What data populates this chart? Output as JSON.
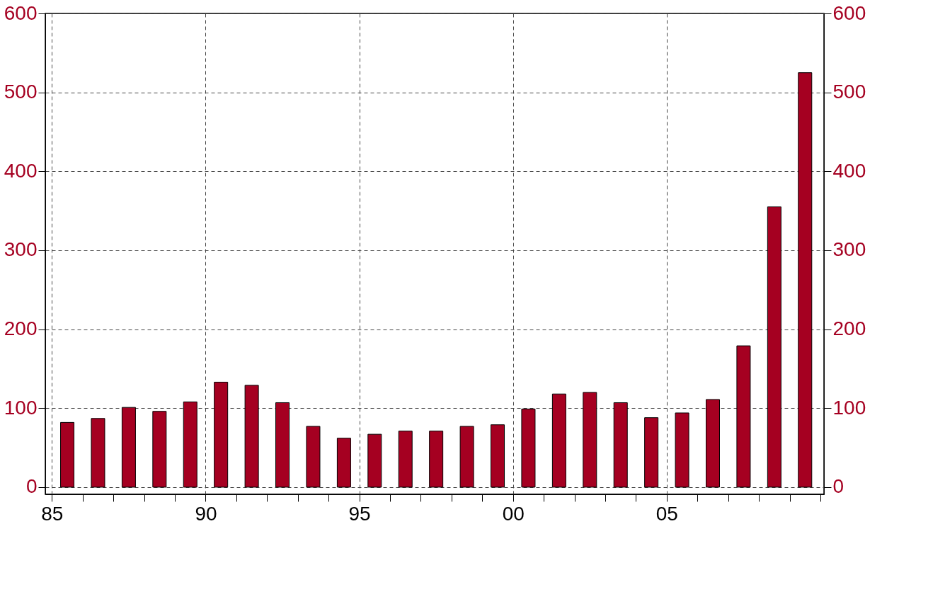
{
  "chart_data": {
    "type": "bar",
    "color": "#a50021",
    "x": [
      1985.5,
      1986.5,
      1987.5,
      1988.5,
      1989.5,
      1990.5,
      1991.5,
      1992.5,
      1993.5,
      1994.5,
      1995.5,
      1996.5,
      1997.5,
      1998.5,
      1999.5,
      2000.5,
      2001.5,
      2002.5,
      2003.5,
      2004.5,
      2005.5,
      2006.5,
      2007.5,
      2008.5,
      2009.5
    ],
    "values": [
      82,
      87,
      101,
      96,
      108,
      133,
      129,
      107,
      77,
      62,
      67,
      71,
      71,
      77,
      79,
      99,
      118,
      120,
      107,
      88,
      94,
      111,
      179,
      355,
      525
    ],
    "xlim": [
      1984.9,
      2010
    ],
    "xticks": [
      {
        "value": 1985,
        "label": "85"
      },
      {
        "value": 1986,
        "label": null
      },
      {
        "value": 1987,
        "label": null
      },
      {
        "value": 1988,
        "label": null
      },
      {
        "value": 1989,
        "label": null
      },
      {
        "value": 1990,
        "label": "90"
      },
      {
        "value": 1991,
        "label": null
      },
      {
        "value": 1992,
        "label": null
      },
      {
        "value": 1993,
        "label": null
      },
      {
        "value": 1994,
        "label": null
      },
      {
        "value": 1995,
        "label": "95"
      },
      {
        "value": 1996,
        "label": null
      },
      {
        "value": 1997,
        "label": null
      },
      {
        "value": 1998,
        "label": null
      },
      {
        "value": 1999,
        "label": null
      },
      {
        "value": 2000,
        "label": "00"
      },
      {
        "value": 2001,
        "label": null
      },
      {
        "value": 2002,
        "label": null
      },
      {
        "value": 2003,
        "label": null
      },
      {
        "value": 2004,
        "label": null
      },
      {
        "value": 2005,
        "label": "05"
      },
      {
        "value": 2006,
        "label": null
      },
      {
        "value": 2007,
        "label": null
      },
      {
        "value": 2008,
        "label": null
      },
      {
        "value": 2009,
        "label": null
      },
      {
        "value": 2010,
        "label": null
      }
    ],
    "ylim": [
      -9,
      600
    ],
    "yticks": [
      0,
      100,
      200,
      300,
      400,
      500,
      600
    ],
    "y2lim": [
      -9,
      600
    ],
    "y2ticks": [
      0,
      100,
      200,
      300,
      400,
      500,
      600
    ],
    "grid": true,
    "line_style": "dashed"
  }
}
